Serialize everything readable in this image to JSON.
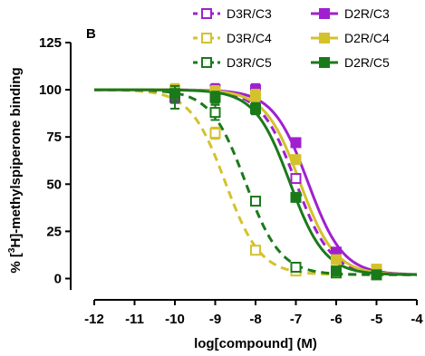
{
  "chart_data": {
    "type": "line",
    "panel_label": "B",
    "xlabel": "log[compound] (M)",
    "ylabel_parts": {
      "prefix": "% [",
      "sup": "3",
      "suffix": "H]-methylspiperone binding"
    },
    "xlim": [
      -12,
      -4
    ],
    "ylim": [
      0,
      125
    ],
    "x_ticks": [
      -12,
      -11,
      -10,
      -9,
      -8,
      -7,
      -6,
      -5,
      -4
    ],
    "x_tick_labels": [
      "-12",
      "-11",
      "-10",
      "-9",
      "-8",
      "-7",
      "-6",
      "-5",
      "-4"
    ],
    "y_ticks": [
      0,
      25,
      50,
      75,
      100,
      125
    ],
    "y_tick_labels": [
      "0",
      "25",
      "50",
      "75",
      "100",
      "125"
    ],
    "grid": false,
    "legend_position": "top-right",
    "x_measured": [
      -10,
      -9,
      -8,
      -7,
      -6,
      -5
    ],
    "series": [
      {
        "name": "D3R/C3",
        "color": "#a020d0",
        "marker": "open-square",
        "dashed": true,
        "values": [
          96,
          100,
          97,
          53,
          11,
          3
        ],
        "errors": [
          3,
          3,
          2,
          2,
          2,
          1
        ],
        "fit": {
          "top": 100,
          "bottom": 2,
          "log_ec50": -7.0,
          "hill": 1.0
        }
      },
      {
        "name": "D3R/C4",
        "color": "#d4c22c",
        "marker": "open-square",
        "dashed": true,
        "values": [
          99,
          77,
          15,
          4,
          3,
          3
        ],
        "errors": [
          4,
          3,
          2,
          1,
          1,
          1
        ],
        "fit": {
          "top": 100,
          "bottom": 2,
          "log_ec50": -8.75,
          "hill": 1.0
        }
      },
      {
        "name": "D3R/C5",
        "color": "#1a7a1a",
        "marker": "open-square",
        "dashed": true,
        "values": [
          96,
          88,
          41,
          6,
          3,
          2
        ],
        "errors": [
          6,
          4,
          2,
          1,
          1,
          1
        ],
        "fit": {
          "top": 100,
          "bottom": 2,
          "log_ec50": -8.25,
          "hill": 1.0
        }
      },
      {
        "name": "D2R/C3",
        "color": "#a020d0",
        "marker": "filled-square",
        "dashed": false,
        "values": [
          97,
          100,
          100,
          72,
          14,
          3
        ],
        "errors": [
          3,
          3,
          3,
          2,
          2,
          1
        ],
        "fit": {
          "top": 100,
          "bottom": 2,
          "log_ec50": -6.7,
          "hill": 1.0
        }
      },
      {
        "name": "D2R/C4",
        "color": "#d4c22c",
        "marker": "filled-square",
        "dashed": false,
        "values": [
          100,
          99,
          97,
          63,
          10,
          5
        ],
        "errors": [
          3,
          3,
          3,
          2,
          2,
          1
        ],
        "fit": {
          "top": 100,
          "bottom": 2,
          "log_ec50": -6.9,
          "hill": 1.0
        }
      },
      {
        "name": "D2R/C5",
        "color": "#1a7a1a",
        "marker": "filled-square",
        "dashed": false,
        "values": [
          98,
          96,
          90,
          43,
          4,
          2
        ],
        "errors": [
          4,
          3,
          3,
          2,
          1,
          1
        ],
        "fit": {
          "top": 100,
          "bottom": 2,
          "log_ec50": -7.15,
          "hill": 1.0
        }
      }
    ]
  }
}
